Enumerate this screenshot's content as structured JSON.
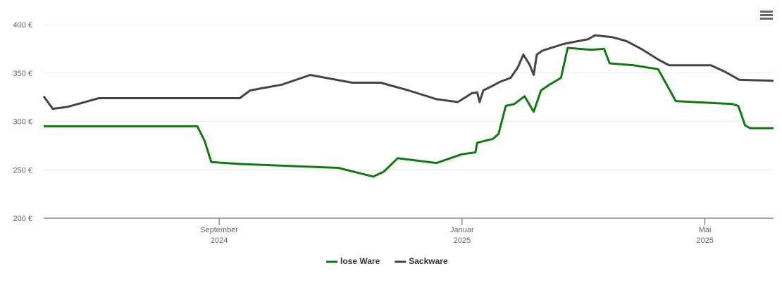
{
  "chart_data": {
    "type": "line",
    "x_unit_note_free": null,
    "xlim": [
      6.11,
      18.13
    ],
    "xticks": [
      {
        "value": 9,
        "label": [
          "September",
          "2024"
        ]
      },
      {
        "value": 13,
        "label": [
          "Januar",
          "2025"
        ]
      },
      {
        "value": 17,
        "label": [
          "Mai",
          "2025"
        ]
      }
    ],
    "ylim": [
      200,
      400
    ],
    "yticks": [
      {
        "value": 200,
        "label": "200 €"
      },
      {
        "value": 250,
        "label": "250 €"
      },
      {
        "value": 300,
        "label": "300 €"
      },
      {
        "value": 350,
        "label": "350 €"
      },
      {
        "value": 400,
        "label": "400 €"
      }
    ],
    "grid": true,
    "legend": "bottom",
    "series": [
      {
        "name": "lose Ware",
        "color": "#0f7a0f",
        "x": [
          6.11,
          8.64,
          8.76,
          8.87,
          9.34,
          10.96,
          11.54,
          11.71,
          11.94,
          12.58,
          12.99,
          13.22,
          13.25,
          13.51,
          13.6,
          13.72,
          13.86,
          14.03,
          14.18,
          14.3,
          14.44,
          14.63,
          14.74,
          15.13,
          15.34,
          15.43,
          15.83,
          16.23,
          16.52,
          17.45,
          17.55,
          17.66,
          17.74,
          18.13
        ],
        "values": [
          295,
          295,
          280,
          258,
          256,
          252,
          243,
          248,
          262,
          257,
          266,
          268,
          278,
          282,
          287,
          316,
          318,
          326,
          310,
          332,
          338,
          345,
          376,
          374,
          375,
          360,
          358,
          354,
          321,
          318,
          316,
          296,
          293,
          293
        ]
      },
      {
        "name": "Sackware",
        "color": "#444444",
        "x": [
          6.11,
          6.26,
          6.5,
          7.02,
          9.34,
          9.51,
          10.03,
          10.5,
          11.19,
          11.66,
          12.12,
          12.58,
          12.93,
          13.16,
          13.25,
          13.29,
          13.35,
          13.51,
          13.63,
          13.8,
          13.92,
          14.01,
          14.11,
          14.18,
          14.23,
          14.32,
          14.67,
          15.08,
          15.19,
          15.48,
          15.71,
          15.95,
          16.23,
          16.41,
          17.1,
          17.34,
          17.57,
          18.13
        ],
        "values": [
          326,
          313,
          315,
          324,
          324,
          332,
          338,
          348,
          340,
          340,
          332,
          323,
          320,
          329,
          330,
          320,
          332,
          337,
          341,
          345,
          356,
          369,
          359,
          348,
          369,
          373,
          380,
          385,
          389,
          387,
          383,
          375,
          364,
          358,
          358,
          351,
          343,
          342
        ]
      }
    ]
  }
}
